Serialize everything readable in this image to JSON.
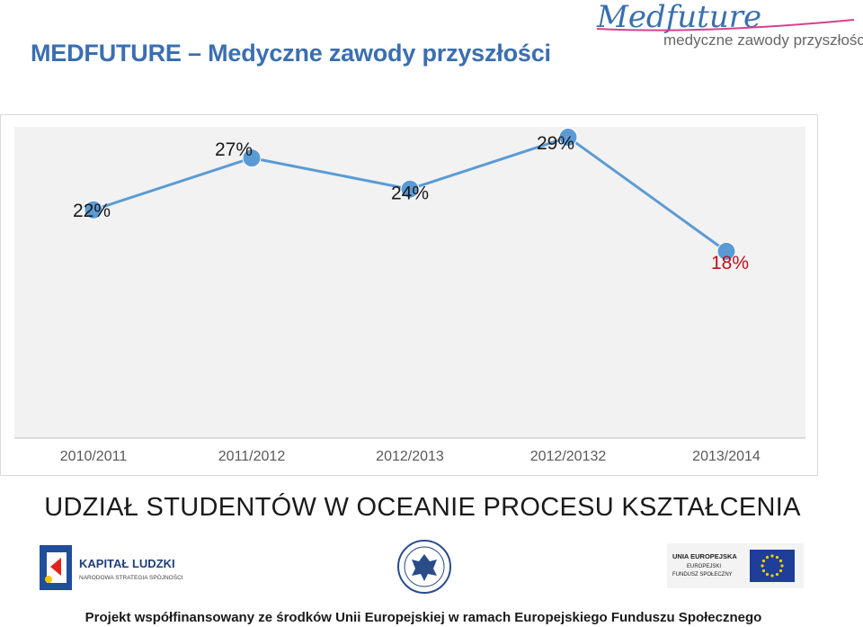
{
  "header": {
    "title": "MEDFUTURE – Medyczne zawody przyszłości",
    "logo_script": "Medfuture",
    "logo_tagline": "medyczne zawody przyszłości"
  },
  "chart_data": {
    "type": "line",
    "categories": [
      "2010/2011",
      "2011/2012",
      "2012/2013",
      "2012/20132",
      "2013/2014"
    ],
    "values": [
      22,
      27,
      24,
      29,
      18
    ],
    "labels": [
      "22%",
      "27%",
      "24%",
      "29%",
      "18%"
    ],
    "label_colors": [
      "#1a1a1a",
      "#1a1a1a",
      "#1a1a1a",
      "#1a1a1a",
      "#c0101a"
    ],
    "ylim": [
      0,
      30
    ],
    "line_color": "#5b9bd5",
    "plot_background": "#f2f2f2",
    "grid": false,
    "legend": false
  },
  "subtitle": "UDZIAŁ STUDENTÓW W OCEANIE PROCESU KSZTAŁCENIA",
  "logos": {
    "kapital_ludzki": "KAPITAŁ LUDZKI",
    "kapital_ludzki_sub": "NARODOWA STRATEGIA SPÓJNOŚCI",
    "eu_title": "UNIA EUROPEJSKA",
    "eu_sub1": "EUROPEJSKI",
    "eu_sub2": "FUNDUSZ SPOŁECZNY"
  },
  "footer": "Projekt współfinansowany ze środków Unii Europejskiej w ramach Europejskiego Funduszu Społecznego"
}
